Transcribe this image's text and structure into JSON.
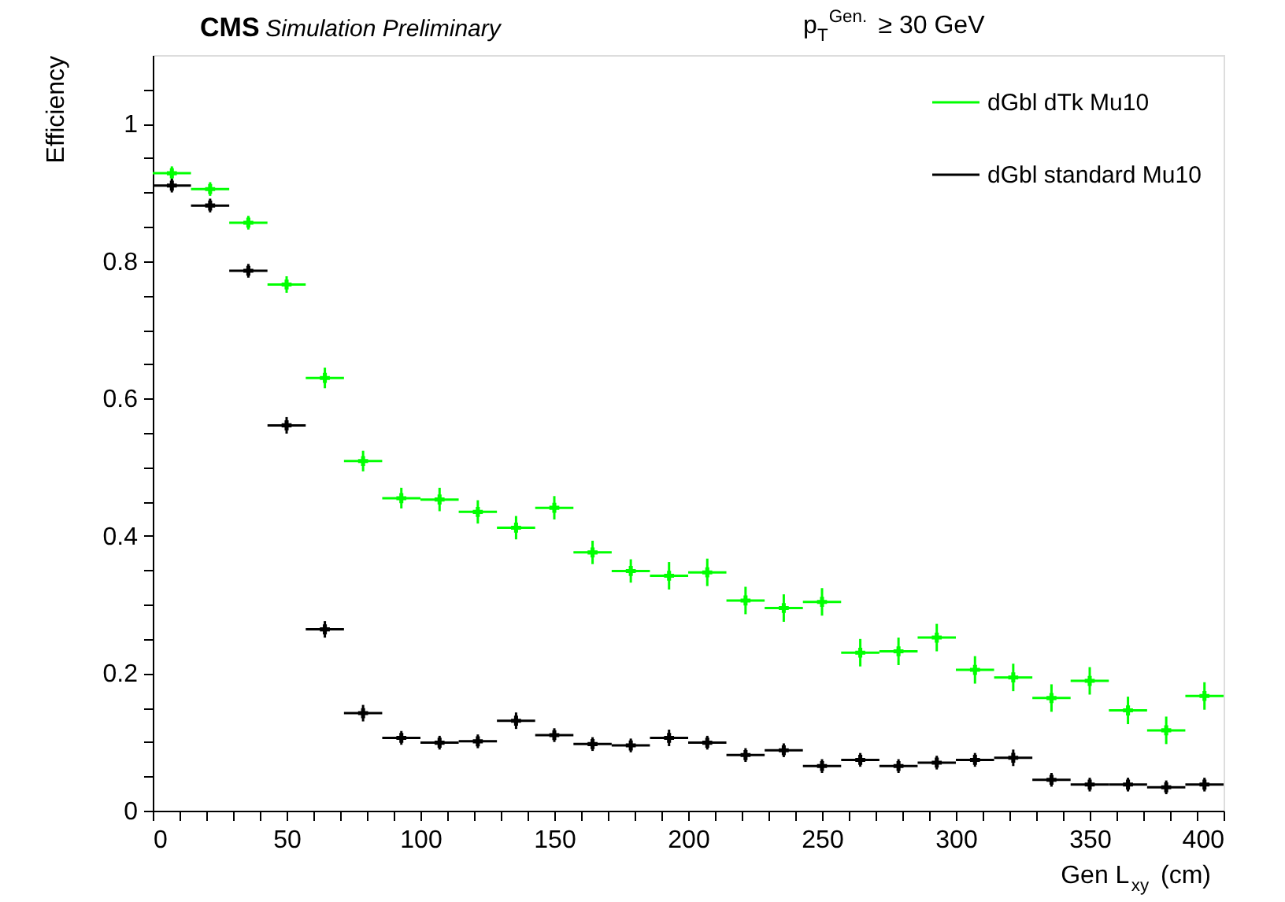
{
  "chart_data": {
    "type": "scatter",
    "title": "CMS",
    "subtitle": "Simulation Preliminary",
    "annotations": [
      "p$_{T}$$^{Gen.}$ ≥ 30 GeV"
    ],
    "xlabel": "Gen L$_{xy}$ (cm)",
    "ylabel": "Efficiency",
    "x": [
      7.14,
      21.43,
      35.71,
      50,
      64.29,
      78.57,
      92.86,
      107.14,
      121.43,
      135.71,
      150,
      164.29,
      178.57,
      192.86,
      207.14,
      221.43,
      235.71,
      250,
      264.29,
      278.57,
      292.86,
      307.14,
      321.43,
      335.71,
      350,
      364.29,
      378.57,
      392.86
    ],
    "series": [
      {
        "name": "dGbl dTk Mu10",
        "color": "#00ff00",
        "values": [
          0.928,
          0.905,
          0.856,
          0.766,
          0.63,
          0.509,
          0.455,
          0.453,
          0.435,
          0.412,
          0.441,
          0.376,
          0.349,
          0.342,
          0.347,
          0.306,
          0.295,
          0.304,
          0.23,
          0.232,
          0.252,
          0.205,
          0.194,
          0.164,
          0.189,
          0.146,
          0.117,
          0.167
        ],
        "errors": [
          0.01,
          0.01,
          0.01,
          0.012,
          0.015,
          0.015,
          0.015,
          0.017,
          0.017,
          0.017,
          0.017,
          0.017,
          0.017,
          0.02,
          0.02,
          0.02,
          0.02,
          0.02,
          0.02,
          0.02,
          0.02,
          0.02,
          0.02,
          0.02,
          0.02,
          0.02,
          0.02,
          0.02
        ],
        "xerrors": [
          7.14,
          7.14,
          7.14,
          7.14,
          7.14,
          7.14,
          7.14,
          7.14,
          7.14,
          7.14,
          7.14,
          7.14,
          7.14,
          7.14,
          7.14,
          7.14,
          7.14,
          7.14,
          7.14,
          7.14,
          7.14,
          7.14,
          7.14,
          7.14,
          7.14,
          7.14,
          7.14,
          7.14
        ]
      },
      {
        "name": "dGbl standard Mu10",
        "color": "#000000",
        "values": [
          0.91,
          0.881,
          0.786,
          0.561,
          0.264,
          0.142,
          0.106,
          0.099,
          0.101,
          0.131,
          0.11,
          0.097,
          0.095,
          0.106,
          0.099,
          0.081,
          0.088,
          0.065,
          0.074,
          0.065,
          0.07,
          0.074,
          0.077,
          0.045,
          0.038,
          0.038,
          0.034,
          0.038
        ],
        "errors": [
          0.01,
          0.01,
          0.01,
          0.012,
          0.012,
          0.012,
          0.01,
          0.01,
          0.01,
          0.012,
          0.01,
          0.01,
          0.01,
          0.012,
          0.01,
          0.01,
          0.01,
          0.01,
          0.01,
          0.01,
          0.01,
          0.01,
          0.012,
          0.01,
          0.01,
          0.01,
          0.01,
          0.01
        ],
        "xerrors": [
          7.14,
          7.14,
          7.14,
          7.14,
          7.14,
          7.14,
          7.14,
          7.14,
          7.14,
          7.14,
          7.14,
          7.14,
          7.14,
          7.14,
          7.14,
          7.14,
          7.14,
          7.14,
          7.14,
          7.14,
          7.14,
          7.14,
          7.14,
          7.14,
          7.14,
          7.14,
          7.14,
          7.14
        ]
      }
    ],
    "xlim": [
      0,
      400
    ],
    "xticks": [
      0,
      {
        "value": 10,
        "label": null
      },
      {
        "value": 20,
        "label": null
      },
      {
        "value": 30,
        "label": null
      },
      {
        "value": 40,
        "label": null
      },
      50,
      {
        "value": 60,
        "label": null
      },
      {
        "value": 70,
        "label": null
      },
      {
        "value": 80,
        "label": null
      },
      {
        "value": 90,
        "label": null
      },
      100,
      {
        "value": 110,
        "label": null
      },
      {
        "value": 120,
        "label": null
      },
      {
        "value": 130,
        "label": null
      },
      {
        "value": 140,
        "label": null
      },
      150,
      {
        "value": 160,
        "label": null
      },
      {
        "value": 170,
        "label": null
      },
      {
        "value": 180,
        "label": null
      },
      {
        "value": 190,
        "label": null
      },
      200,
      {
        "value": 210,
        "label": null
      },
      {
        "value": 220,
        "label": null
      },
      {
        "value": 230,
        "label": null
      },
      {
        "value": 240,
        "label": null
      },
      250,
      {
        "value": 260,
        "label": null
      },
      {
        "value": 270,
        "label": null
      },
      {
        "value": 280,
        "label": null
      },
      {
        "value": 290,
        "label": null
      },
      300,
      {
        "value": 310,
        "label": null
      },
      {
        "value": 320,
        "label": null
      },
      {
        "value": 330,
        "label": null
      },
      {
        "value": 340,
        "label": null
      },
      350,
      {
        "value": 360,
        "label": null
      },
      {
        "value": 370,
        "label": null
      },
      {
        "value": 380,
        "label": null
      },
      {
        "value": 390,
        "label": null
      },
      400
    ],
    "ylim": [
      0,
      1.1
    ],
    "yticks": [
      0,
      {
        "value": 0.05,
        "label": null
      },
      {
        "value": 0.1,
        "label": null
      },
      {
        "value": 0.15,
        "label": null
      },
      0.2,
      {
        "value": 0.25,
        "label": null
      },
      {
        "value": 0.3,
        "label": null
      },
      {
        "value": 0.35,
        "label": null
      },
      0.4,
      {
        "value": 0.45,
        "label": null
      },
      {
        "value": 0.5,
        "label": null
      },
      {
        "value": 0.55,
        "label": null
      },
      0.6,
      {
        "value": 0.65,
        "label": null
      },
      {
        "value": 0.7,
        "label": null
      },
      {
        "value": 0.75,
        "label": null
      },
      0.8,
      {
        "value": 0.85,
        "label": null
      },
      {
        "value": 0.9,
        "label": null
      },
      {
        "value": 0.95,
        "label": null
      },
      1,
      {
        "value": 1.05,
        "label": null
      }
    ],
    "marker": "cross",
    "legend": "top right",
    "grid": false
  }
}
